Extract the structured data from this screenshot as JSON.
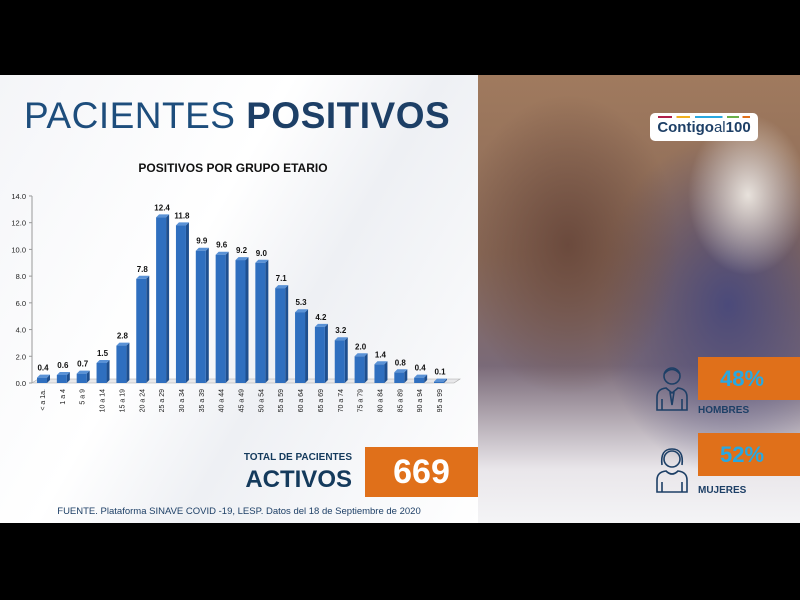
{
  "header": {
    "title_light": "PACIENTES",
    "title_bold": "POSITIVOS"
  },
  "logo": {
    "text_a": "Contigo",
    "text_b": "al",
    "text_c": "100"
  },
  "chart_data": {
    "type": "bar",
    "title": "POSITIVOS POR GRUPO ETARIO",
    "categories": [
      "< a 1a.",
      "1 a 4",
      "5 a 9",
      "10 a 14",
      "15 a 19",
      "20 a 24",
      "25 a 29",
      "30 a 34",
      "35 a 39",
      "40 a 44",
      "45 a 49",
      "50 a 54",
      "55 a 59",
      "60 a 64",
      "65 a 69",
      "70 a 74",
      "75 a 79",
      "80 a 84",
      "85 a 89",
      "90 a 94",
      "95 a 99"
    ],
    "values": [
      0.4,
      0.6,
      0.7,
      1.5,
      2.8,
      7.8,
      12.4,
      11.8,
      9.9,
      9.6,
      9.2,
      9.0,
      7.1,
      5.3,
      4.2,
      3.2,
      2.0,
      1.4,
      0.8,
      0.4,
      0.1
    ],
    "yticks": [
      "0.0",
      "2.0",
      "4.0",
      "6.0",
      "8.0",
      "10.0",
      "12.0",
      "14.0"
    ],
    "ylim": [
      0,
      14
    ],
    "bar_color": "#2f6fbf",
    "data_labels": true,
    "grid": false
  },
  "total": {
    "label": "TOTAL DE PACIENTES",
    "label_bold": "ACTIVOS",
    "value": "669",
    "color": "#e0701a"
  },
  "gender": [
    {
      "label": "HOMBRES",
      "pct": "48%",
      "icon": "man-icon"
    },
    {
      "label": "MUJERES",
      "pct": "52%",
      "icon": "woman-icon"
    }
  ],
  "source": "FUENTE. Plataforma SINAVE COVID -19, LESP. Datos del 18 de Septiembre de 2020"
}
